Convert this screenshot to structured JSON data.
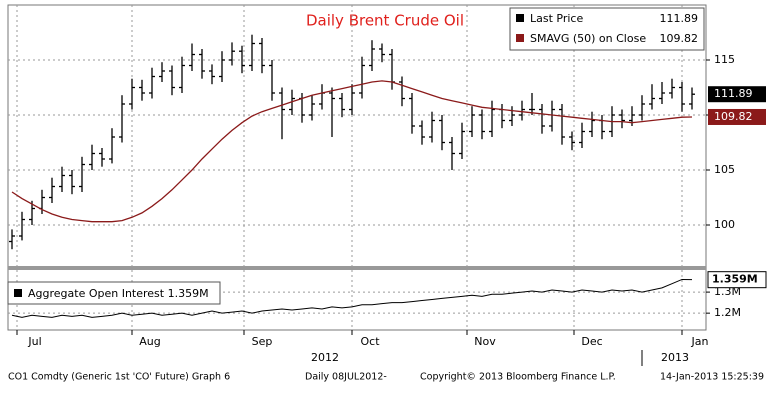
{
  "chart_data": [
    {
      "type": "ohlc",
      "title": "Daily Brent Crude Oil",
      "series": [
        {
          "name": "Last Price",
          "color": "#000000",
          "open": [
            98.5,
            99.0,
            100.5,
            101.5,
            102.5,
            103.5,
            104.5,
            103.5,
            105.5,
            106.5,
            106.0,
            108.0,
            111.0,
            112.5,
            112.0,
            113.5,
            114.0,
            112.5,
            114.5,
            115.5,
            114.0,
            113.5,
            115.0,
            115.8,
            114.5,
            116.5,
            114.5,
            112.0,
            110.5,
            111.5,
            110.0,
            111.0,
            112.0,
            111.5,
            110.5,
            112.0,
            114.5,
            116.0,
            115.5,
            113.0,
            111.5,
            109.0,
            108.0,
            109.5,
            107.5,
            106.5,
            108.5,
            110.0,
            108.5,
            110.5,
            109.5,
            110.0,
            110.5,
            110.5,
            109.0,
            110.5,
            108.0,
            107.5,
            108.5,
            109.5,
            108.5,
            110.0,
            109.5,
            110.0,
            111.0,
            111.5,
            112.0,
            112.5,
            111.0
          ],
          "high": [
            99.6,
            101.2,
            102.2,
            103.2,
            104.3,
            105.3,
            105.0,
            106.2,
            107.3,
            107.0,
            108.8,
            111.8,
            113.3,
            113.2,
            114.3,
            114.8,
            114.5,
            115.3,
            116.5,
            116.0,
            114.6,
            115.8,
            116.6,
            116.3,
            117.3,
            117.0,
            115.0,
            112.5,
            112.3,
            112.0,
            111.8,
            112.8,
            112.5,
            112.0,
            112.8,
            115.3,
            116.8,
            116.5,
            116.0,
            113.5,
            112.0,
            109.5,
            110.3,
            110.0,
            108.0,
            109.3,
            110.8,
            110.5,
            111.3,
            111.0,
            110.8,
            111.3,
            112.0,
            111.0,
            111.3,
            111.0,
            108.5,
            109.3,
            110.3,
            110.0,
            110.8,
            110.5,
            110.8,
            111.8,
            112.8,
            113.0,
            113.3,
            113.0,
            112.5
          ],
          "low": [
            97.8,
            98.6,
            100.0,
            101.0,
            102.0,
            103.0,
            102.8,
            103.0,
            105.0,
            105.3,
            105.6,
            107.5,
            110.5,
            111.3,
            111.5,
            113.0,
            111.8,
            112.0,
            114.0,
            113.3,
            112.8,
            113.0,
            114.5,
            113.8,
            114.0,
            113.8,
            111.3,
            107.8,
            110.0,
            109.3,
            109.5,
            110.5,
            108.0,
            109.8,
            110.0,
            111.5,
            114.0,
            114.8,
            112.3,
            110.8,
            108.3,
            107.3,
            107.5,
            106.8,
            105.0,
            106.0,
            108.0,
            107.8,
            108.0,
            108.8,
            109.0,
            109.5,
            110.0,
            108.3,
            108.5,
            107.3,
            106.8,
            107.0,
            108.0,
            107.8,
            108.0,
            108.8,
            109.0,
            109.5,
            110.5,
            111.0,
            111.5,
            110.3,
            110.5
          ],
          "values": [
            99.0,
            100.5,
            101.5,
            102.5,
            103.5,
            104.5,
            103.5,
            105.5,
            106.5,
            106.0,
            108.0,
            111.0,
            112.5,
            112.0,
            113.5,
            114.0,
            112.5,
            114.5,
            115.5,
            114.0,
            113.5,
            115.0,
            115.8,
            114.5,
            116.5,
            114.5,
            112.0,
            110.5,
            111.5,
            110.0,
            111.0,
            112.0,
            111.5,
            110.5,
            112.0,
            114.5,
            116.0,
            115.5,
            113.0,
            111.5,
            109.0,
            108.0,
            109.5,
            107.5,
            106.5,
            108.5,
            110.0,
            108.5,
            110.5,
            109.5,
            110.0,
            110.5,
            110.5,
            109.0,
            110.5,
            108.0,
            107.5,
            108.5,
            109.5,
            108.5,
            110.0,
            109.5,
            110.0,
            111.0,
            111.5,
            112.0,
            112.5,
            111.0,
            111.89
          ]
        },
        {
          "name": "SMAVG (50) on Close",
          "color": "#8b1a1a",
          "values": [
            103.0,
            102.4,
            101.9,
            101.4,
            101.0,
            100.7,
            100.5,
            100.4,
            100.3,
            100.3,
            100.3,
            100.4,
            100.7,
            101.1,
            101.7,
            102.4,
            103.2,
            104.1,
            105.0,
            106.0,
            106.9,
            107.8,
            108.6,
            109.3,
            109.9,
            110.3,
            110.6,
            110.9,
            111.2,
            111.5,
            111.8,
            112.0,
            112.2,
            112.4,
            112.6,
            112.8,
            113.0,
            113.1,
            113.0,
            112.7,
            112.4,
            112.1,
            111.8,
            111.5,
            111.3,
            111.1,
            110.9,
            110.7,
            110.6,
            110.5,
            110.4,
            110.3,
            110.2,
            110.1,
            110.0,
            109.9,
            109.8,
            109.7,
            109.6,
            109.5,
            109.4,
            109.4,
            109.3,
            109.4,
            109.5,
            109.6,
            109.7,
            109.8,
            109.82
          ]
        }
      ],
      "ylim": [
        96,
        120
      ],
      "yticks": [
        100,
        105,
        110,
        115
      ],
      "grid": true,
      "xticks": [
        {
          "value": 2.3,
          "label": "Jul"
        },
        {
          "value": 13.8,
          "label": "Aug"
        },
        {
          "value": 25,
          "label": "Sep"
        },
        {
          "value": 35.8,
          "label": "Oct"
        },
        {
          "value": 47.3,
          "label": "Nov"
        },
        {
          "value": 58,
          "label": "Dec"
        },
        {
          "value": 68.8,
          "label": "Jan"
        }
      ],
      "year_labels": [
        {
          "value": 31.3,
          "label": "2012"
        },
        {
          "value": 66.3,
          "label": "2013"
        }
      ]
    },
    {
      "type": "line",
      "series": [
        {
          "name": "Aggregate Open Interest",
          "color": "#000000",
          "values": [
            1.19,
            1.18,
            1.19,
            1.185,
            1.18,
            1.19,
            1.185,
            1.19,
            1.18,
            1.185,
            1.19,
            1.2,
            1.19,
            1.195,
            1.2,
            1.19,
            1.195,
            1.2,
            1.19,
            1.2,
            1.21,
            1.2,
            1.205,
            1.21,
            1.2,
            1.21,
            1.215,
            1.22,
            1.215,
            1.22,
            1.225,
            1.22,
            1.23,
            1.225,
            1.23,
            1.24,
            1.24,
            1.245,
            1.25,
            1.25,
            1.255,
            1.26,
            1.265,
            1.27,
            1.275,
            1.28,
            1.285,
            1.28,
            1.29,
            1.29,
            1.295,
            1.3,
            1.305,
            1.3,
            1.31,
            1.305,
            1.3,
            1.31,
            1.305,
            1.3,
            1.31,
            1.305,
            1.31,
            1.3,
            1.31,
            1.32,
            1.34,
            1.36,
            1.359
          ],
          "value_labels": [
            null,
            null,
            null,
            null,
            null,
            null,
            null,
            null,
            null,
            null,
            null,
            null,
            null,
            null,
            null,
            null,
            null,
            null,
            null,
            null,
            null,
            null,
            null,
            null,
            null,
            null,
            null,
            null,
            null,
            null,
            null,
            null,
            null,
            null,
            null,
            null,
            null,
            null,
            null,
            null,
            null,
            null,
            null,
            null,
            null,
            null,
            null,
            null,
            null,
            null,
            null,
            null,
            null,
            null,
            null,
            null,
            null,
            null,
            null,
            null,
            null,
            null,
            null,
            null,
            null,
            null,
            null,
            null,
            "1.359M"
          ]
        }
      ],
      "ylim": [
        1.12,
        1.405
      ],
      "yticks": [
        {
          "value": 1.2,
          "label": "1.2M"
        },
        {
          "value": 1.3,
          "label": "1.3M"
        }
      ],
      "grid": true
    }
  ],
  "footer": {
    "security": "CO1 Comdty (Generic 1st 'CO' Future) Graph 6",
    "period": "Daily 08JUL2012-",
    "copyright": "Copyright© 2013 Bloomberg Finance L.P.",
    "timestamp": "14-Jan-2013 15:25:39"
  }
}
